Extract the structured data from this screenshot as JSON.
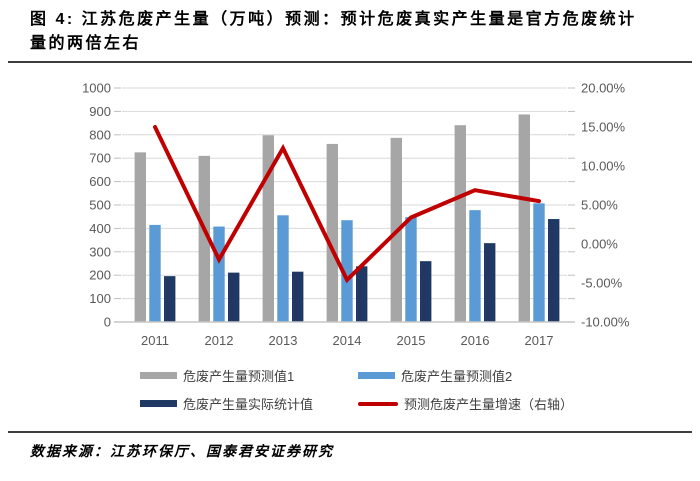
{
  "header": {
    "title": "图 4: 江苏危废产生量（万吨）预测：预计危废真实产生量是官方危废统计量的两倍左右"
  },
  "footer": {
    "source": "数据来源：江苏环保厅、国泰君安证券研究"
  },
  "colors": {
    "series1_gray": "#a6a6a6",
    "series2_blue": "#5b9bd5",
    "series3_navy": "#1f3864",
    "growth_red": "#c00000",
    "gridline": "#d9d9d9",
    "tick": "#bfbfbf",
    "axis_text": "#595959"
  },
  "chart_data": {
    "type": "bar",
    "subtype": "grouped bars with line on secondary axis",
    "categories": [
      "2011",
      "2012",
      "2013",
      "2014",
      "2015",
      "2016",
      "2017"
    ],
    "series": [
      {
        "name": "危废产生量预测值1",
        "type": "bar",
        "axis": "left",
        "color": "#a6a6a6",
        "values": [
          725,
          710,
          798,
          761,
          787,
          841,
          887
        ]
      },
      {
        "name": "危废产生量预测值2",
        "type": "bar",
        "axis": "left",
        "color": "#5b9bd5",
        "values": [
          415,
          408,
          456,
          435,
          448,
          478,
          507
        ]
      },
      {
        "name": "危废产生量实际统计值",
        "type": "bar",
        "axis": "left",
        "color": "#1f3864",
        "values": [
          196,
          211,
          215,
          238,
          260,
          337,
          440
        ]
      },
      {
        "name": "预测危废产生量增速（右轴）",
        "type": "line",
        "axis": "right",
        "color": "#c00000",
        "values": [
          15.0,
          -2.0,
          12.3,
          -4.6,
          3.4,
          6.9,
          5.5
        ]
      }
    ],
    "left_axis": {
      "min": 0,
      "max": 1000,
      "step": 100,
      "tick_values": [
        0,
        100,
        200,
        300,
        400,
        500,
        600,
        700,
        800,
        900,
        1000
      ],
      "tick_labels": [
        "0",
        "100",
        "200",
        "300",
        "400",
        "500",
        "600",
        "700",
        "800",
        "900",
        "1000"
      ]
    },
    "right_axis": {
      "min": -10,
      "max": 20,
      "step": 5,
      "tick_values": [
        20,
        15,
        10,
        5,
        0,
        -5,
        -10
      ],
      "tick_labels": [
        "20.00%",
        "15.00%",
        "10.00%",
        "5.00%",
        "0.00%",
        "-5.00%",
        "-10.00%"
      ]
    },
    "grid": true,
    "legend_position": "bottom"
  }
}
